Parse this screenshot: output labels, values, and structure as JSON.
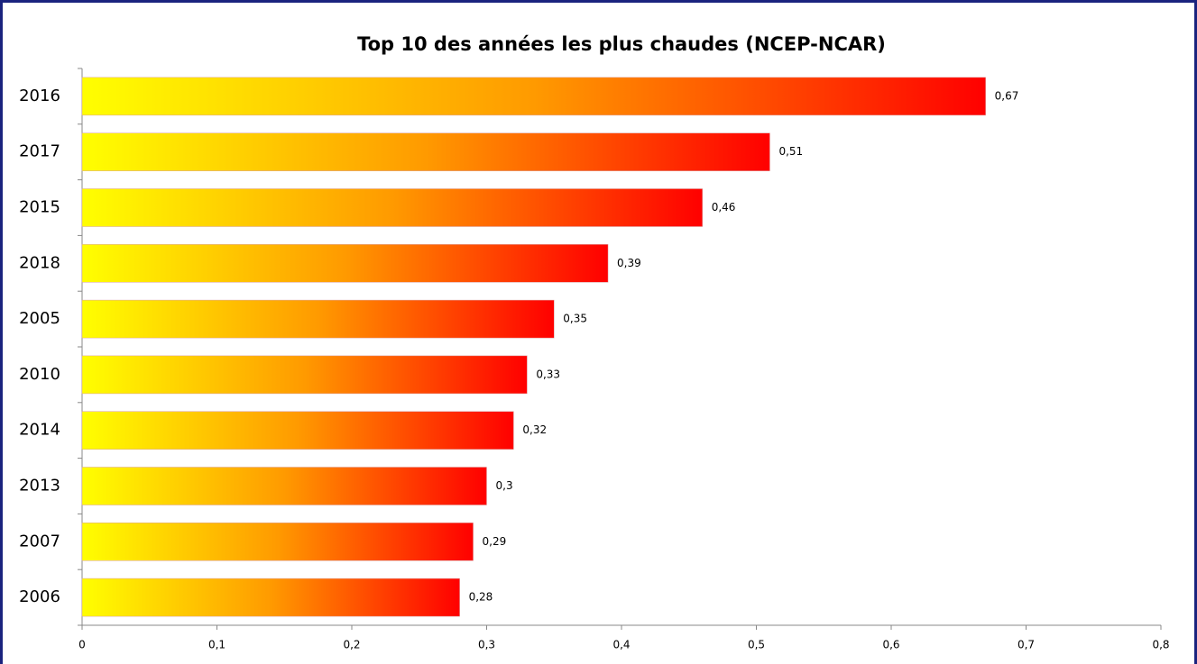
{
  "chart_data": {
    "type": "bar",
    "orientation": "horizontal",
    "title": "Top 10 des années les plus chaudes (NCEP-NCAR)",
    "categories": [
      "2016",
      "2017",
      "2015",
      "2018",
      "2005",
      "2010",
      "2014",
      "2013",
      "2007",
      "2006"
    ],
    "values": [
      0.67,
      0.51,
      0.46,
      0.39,
      0.35,
      0.33,
      0.32,
      0.3,
      0.29,
      0.28
    ],
    "value_labels": [
      "0,67",
      "0,51",
      "0,46",
      "0,39",
      "0,35",
      "0,33",
      "0,32",
      "0,3",
      "0,29",
      "0,28"
    ],
    "gradient": [
      "#ffff00",
      "#ff9a00",
      "#ff0000"
    ],
    "xlim": [
      0,
      0.8
    ],
    "xticks": [
      0,
      {
        "value": 0.1,
        "label": "0,1"
      },
      {
        "value": 0.2,
        "label": "0,2"
      },
      {
        "value": 0.3,
        "label": "0,3"
      },
      {
        "value": 0.4,
        "label": "0,4"
      },
      {
        "value": 0.5,
        "label": "0,5"
      },
      {
        "value": 0.6,
        "label": "0,6"
      },
      {
        "value": 0.7,
        "label": "0,7"
      },
      {
        "value": 0.8,
        "label": "0,8"
      }
    ],
    "grid": false
  }
}
